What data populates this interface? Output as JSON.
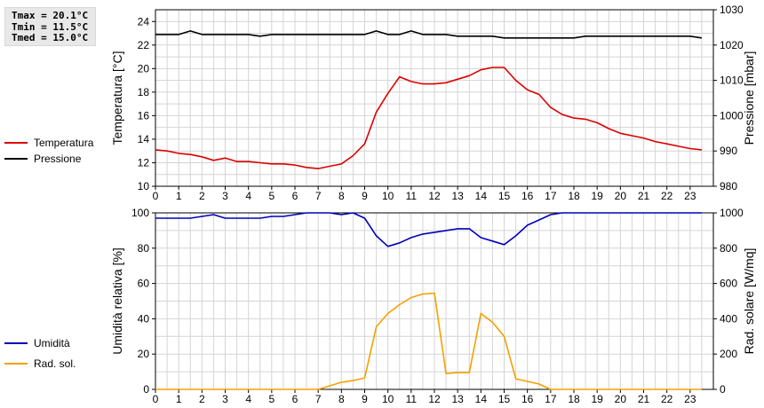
{
  "stats": {
    "tmax": "Tmax = 20.1°C",
    "tmin": "Tmin = 11.5°C",
    "tmed": "Tmed = 15.0°C"
  },
  "colors": {
    "temperatura": "#dd0000",
    "pressione": "#000000",
    "umidita": "#0000bb",
    "radiazione": "#f5a000",
    "grid": "#d4d4d4"
  },
  "legend_top": [
    {
      "label": "Temperatura",
      "color": "#dd0000"
    },
    {
      "label": "Pressione",
      "color": "#000000"
    }
  ],
  "legend_bottom": [
    {
      "label": "Umidità",
      "color": "#0000bb"
    },
    {
      "label": "Rad. sol.",
      "color": "#f5a000"
    }
  ],
  "chart_data": [
    {
      "type": "line",
      "x_ticks": [
        "0",
        "1",
        "2",
        "3",
        "4",
        "5",
        "6",
        "7",
        "8",
        "9",
        "10",
        "11",
        "12",
        "13",
        "14",
        "15",
        "16",
        "17",
        "18",
        "19",
        "20",
        "21",
        "22",
        "23"
      ],
      "xlim": [
        0,
        24
      ],
      "left_axis": {
        "label": "Temperatura [°C]",
        "ylim": [
          10,
          25
        ],
        "ticks": [
          "10",
          "12",
          "14",
          "16",
          "18",
          "20",
          "22",
          "24"
        ]
      },
      "right_axis": {
        "label": "Pressione [mbar]",
        "ylim": [
          980,
          1030
        ],
        "ticks": [
          "980",
          "990",
          "1000",
          "1010",
          "1020",
          "1030"
        ]
      },
      "grid": true,
      "series": [
        {
          "name": "Temperatura",
          "axis": "left",
          "x": [
            0,
            0.5,
            1,
            1.5,
            2,
            2.5,
            3,
            3.5,
            4,
            4.5,
            5,
            5.5,
            6,
            6.5,
            7,
            7.5,
            8,
            8.5,
            9,
            9.5,
            10,
            10.5,
            11,
            11.5,
            12,
            12.5,
            13,
            13.5,
            14,
            14.5,
            15,
            15.5,
            16,
            16.5,
            17,
            17.5,
            18,
            18.5,
            19,
            19.5,
            20,
            20.5,
            21,
            21.5,
            22,
            22.5,
            23,
            23.5
          ],
          "y": [
            13.1,
            13.0,
            12.8,
            12.7,
            12.5,
            12.2,
            12.4,
            12.1,
            12.1,
            12.0,
            11.9,
            11.9,
            11.8,
            11.6,
            11.5,
            11.7,
            11.9,
            12.6,
            13.6,
            16.3,
            17.9,
            19.3,
            18.9,
            18.7,
            18.7,
            18.8,
            19.1,
            19.4,
            19.9,
            20.1,
            20.1,
            19.0,
            18.2,
            17.8,
            16.7,
            16.1,
            15.8,
            15.7,
            15.4,
            14.9,
            14.5,
            14.3,
            14.1,
            13.8,
            13.6,
            13.4,
            13.2,
            13.1
          ]
        },
        {
          "name": "Pressione",
          "axis": "right",
          "x": [
            0,
            0.5,
            1,
            1.5,
            2,
            2.5,
            3,
            3.5,
            4,
            4.5,
            5,
            5.5,
            6,
            6.5,
            7,
            7.5,
            8,
            8.5,
            9,
            9.5,
            10,
            10.5,
            11,
            11.5,
            12,
            12.5,
            13,
            13.5,
            14,
            14.5,
            15,
            15.5,
            16,
            16.5,
            17,
            17.5,
            18,
            18.5,
            19,
            19.5,
            20,
            20.5,
            21,
            21.5,
            22,
            22.5,
            23,
            23.5
          ],
          "y": [
            1023,
            1023,
            1023,
            1024,
            1023,
            1023,
            1023,
            1023,
            1023,
            1022.5,
            1023,
            1023,
            1023,
            1023,
            1023,
            1023,
            1023,
            1023,
            1023,
            1024,
            1023,
            1023,
            1024,
            1023,
            1023,
            1023,
            1022.5,
            1022.5,
            1022.5,
            1022.5,
            1022,
            1022,
            1022,
            1022,
            1022,
            1022,
            1022,
            1022.5,
            1022.5,
            1022.5,
            1022.5,
            1022.5,
            1022.5,
            1022.5,
            1022.5,
            1022.5,
            1022.5,
            1022
          ]
        }
      ]
    },
    {
      "type": "line",
      "x_ticks": [
        "0",
        "1",
        "2",
        "3",
        "4",
        "5",
        "6",
        "7",
        "8",
        "9",
        "10",
        "11",
        "12",
        "13",
        "14",
        "15",
        "16",
        "17",
        "18",
        "19",
        "20",
        "21",
        "22",
        "23"
      ],
      "xlim": [
        0,
        24
      ],
      "left_axis": {
        "label": "Umidità relativa [%]",
        "ylim": [
          0,
          100
        ],
        "ticks": [
          "0",
          "20",
          "40",
          "60",
          "80",
          "100"
        ]
      },
      "right_axis": {
        "label": "Rad. solare [W/mq]",
        "ylim": [
          0,
          1000
        ],
        "ticks": [
          "0",
          "200",
          "400",
          "600",
          "800",
          "1000"
        ]
      },
      "grid": true,
      "series": [
        {
          "name": "Umidità",
          "axis": "left",
          "x": [
            0,
            0.5,
            1,
            1.5,
            2,
            2.5,
            3,
            3.5,
            4,
            4.5,
            5,
            5.5,
            6,
            6.5,
            7,
            7.5,
            8,
            8.5,
            9,
            9.5,
            10,
            10.5,
            11,
            11.5,
            12,
            12.5,
            13,
            13.5,
            14,
            14.5,
            15,
            15.5,
            16,
            16.5,
            17,
            17.5,
            18,
            18.5,
            19,
            19.5,
            20,
            20.5,
            21,
            21.5,
            22,
            22.5,
            23,
            23.5
          ],
          "y": [
            97,
            97,
            97,
            97,
            98,
            99,
            97,
            97,
            97,
            97,
            98,
            98,
            99,
            100,
            100,
            100,
            99,
            100,
            97,
            87,
            81,
            83,
            86,
            88,
            89,
            90,
            91,
            91,
            86,
            84,
            82,
            87,
            93,
            96,
            99,
            100,
            100,
            100,
            100,
            100,
            100,
            100,
            100,
            100,
            100,
            100,
            100,
            100
          ]
        },
        {
          "name": "Rad. sol.",
          "axis": "right",
          "x": [
            0,
            0.5,
            1,
            1.5,
            2,
            2.5,
            3,
            3.5,
            4,
            4.5,
            5,
            5.5,
            6,
            6.5,
            7,
            7.5,
            8,
            8.5,
            9,
            9.5,
            10,
            10.5,
            11,
            11.5,
            12,
            12.5,
            13,
            13.5,
            14,
            14.5,
            15,
            15.5,
            16,
            16.5,
            17,
            17.5,
            18,
            18.5,
            19,
            19.5,
            20,
            20.5,
            21,
            21.5,
            22,
            22.5,
            23,
            23.5
          ],
          "y": [
            0,
            0,
            0,
            0,
            0,
            0,
            0,
            0,
            0,
            0,
            0,
            0,
            0,
            0,
            0,
            20,
            40,
            50,
            65,
            355,
            430,
            480,
            520,
            540,
            545,
            90,
            95,
            95,
            430,
            380,
            300,
            60,
            45,
            30,
            0,
            0,
            0,
            0,
            0,
            0,
            0,
            0,
            0,
            0,
            0,
            0,
            0,
            0
          ]
        }
      ]
    }
  ]
}
